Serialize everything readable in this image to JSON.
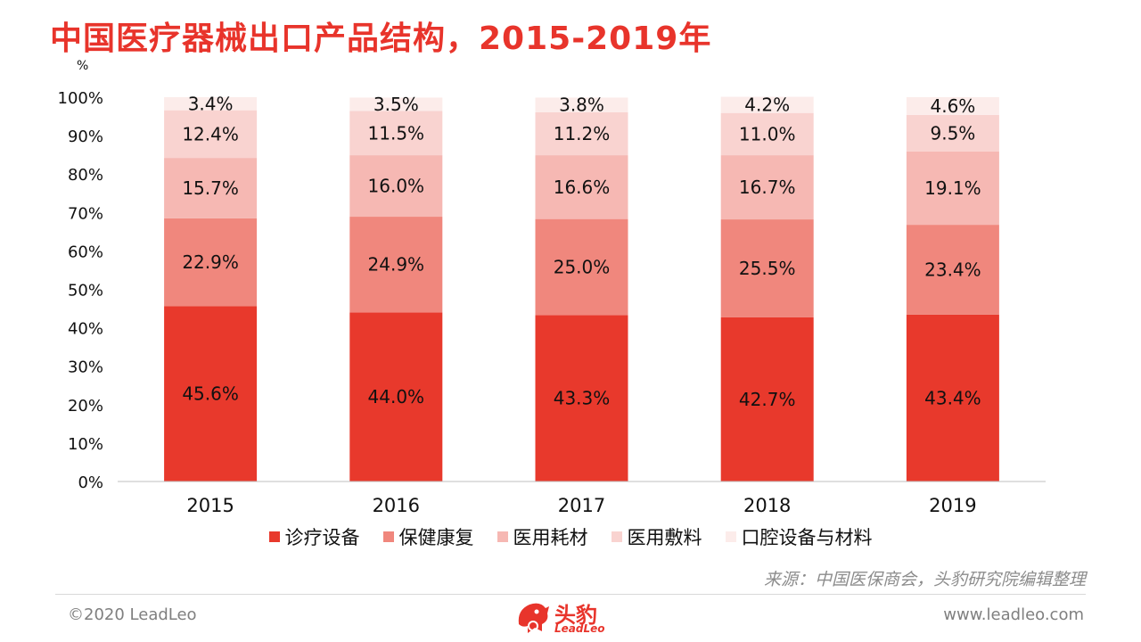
{
  "title": "中国医疗器械出口产品结构，2015-2019年",
  "unit_label": "%",
  "legend_items": [
    {
      "label": "诊疗设备",
      "color": "#e8392c"
    },
    {
      "label": "保健康复",
      "color": "#f0877d"
    },
    {
      "label": "医用耗材",
      "color": "#f6b8b3"
    },
    {
      "label": "医用敷料",
      "color": "#f9d3d0"
    },
    {
      "label": "口腔设备与材料",
      "color": "#fcecea"
    }
  ],
  "source": "来源：中国医保商会，头豹研究院编辑整理",
  "copyright": "©2020 LeadLeo",
  "website": "www.leadleo.com",
  "logo": {
    "name": "头豹",
    "sub": "LeadLeo"
  },
  "chart_data": {
    "type": "bar",
    "stacked": true,
    "categories": [
      "2015",
      "2016",
      "2017",
      "2018",
      "2019"
    ],
    "ylim": [
      0,
      100
    ],
    "yticks": [
      "0%",
      "10%",
      "20%",
      "30%",
      "40%",
      "50%",
      "60%",
      "70%",
      "80%",
      "90%",
      "100%"
    ],
    "series": [
      {
        "name": "诊疗设备",
        "color": "#e8392c",
        "values": [
          45.6,
          44.0,
          43.3,
          42.7,
          43.4
        ],
        "labels": [
          "45.6%",
          "44.0%",
          "43.3%",
          "42.7%",
          "43.4%"
        ]
      },
      {
        "name": "保健康复",
        "color": "#f0877d",
        "values": [
          22.9,
          24.9,
          25.0,
          25.5,
          23.4
        ],
        "labels": [
          "22.9%",
          "24.9%",
          "25.0%",
          "25.5%",
          "23.4%"
        ]
      },
      {
        "name": "医用耗材",
        "color": "#f6b8b3",
        "values": [
          15.7,
          16.0,
          16.6,
          16.7,
          19.1
        ],
        "labels": [
          "15.7%",
          "16.0%",
          "16.6%",
          "16.7%",
          "19.1%"
        ]
      },
      {
        "name": "医用敷料",
        "color": "#f9d3d0",
        "values": [
          12.4,
          11.5,
          11.2,
          11.0,
          9.5
        ],
        "labels": [
          "12.4%",
          "11.5%",
          "11.2%",
          "11.0%",
          "9.5%"
        ]
      },
      {
        "name": "口腔设备与材料",
        "color": "#fcecea",
        "values": [
          3.4,
          3.5,
          3.8,
          4.2,
          4.6
        ],
        "labels": [
          "3.4%",
          "3.5%",
          "3.8%",
          "4.2%",
          "4.6%"
        ]
      }
    ],
    "grid": false,
    "legend_position": "bottom"
  }
}
